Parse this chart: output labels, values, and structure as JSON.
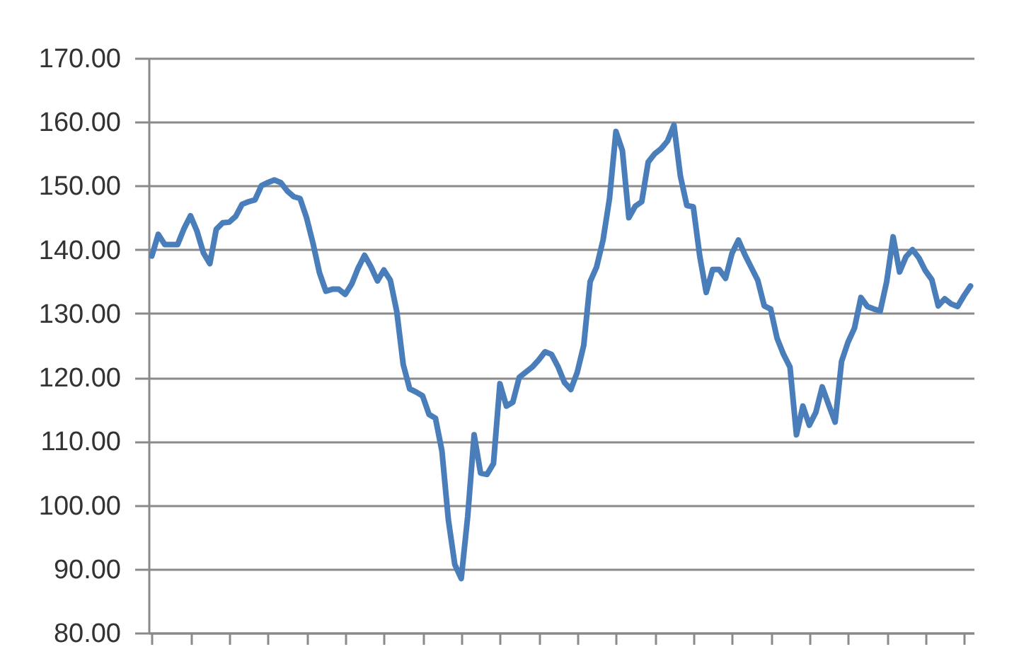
{
  "chart_data": {
    "type": "line",
    "categories": [
      null,
      null,
      null,
      null,
      null,
      null,
      null,
      null,
      null,
      null,
      null,
      null,
      null,
      null,
      null,
      null,
      null,
      null,
      null,
      null,
      null,
      null,
      null,
      null,
      null,
      null,
      null,
      null,
      null,
      null,
      null,
      null,
      null,
      null,
      null,
      null,
      null,
      null,
      null,
      null,
      null,
      null,
      null,
      null,
      null,
      null,
      null,
      null,
      null,
      null,
      null,
      null,
      null,
      null,
      null,
      null,
      null,
      null,
      null,
      null,
      null,
      null,
      null,
      null,
      null,
      null,
      null,
      null,
      null,
      null,
      null,
      null,
      null,
      null,
      null,
      null,
      null,
      null,
      null,
      null,
      null,
      null,
      null,
      null,
      null,
      null,
      null,
      null,
      null,
      null,
      null,
      null,
      null,
      null,
      null,
      null,
      null,
      null,
      null,
      null,
      null,
      null,
      null,
      null,
      null,
      null,
      null,
      null,
      null,
      null,
      null,
      null,
      null,
      null,
      null,
      null,
      null,
      null,
      null,
      null,
      null,
      null,
      null,
      null,
      null,
      null,
      null,
      null
    ],
    "series": [
      {
        "color": "#4a7ebb",
        "values": [
          139.0,
          142.4,
          140.8,
          140.8,
          140.8,
          143.3,
          145.3,
          142.9,
          139.5,
          137.8,
          143.2,
          144.2,
          144.3,
          145.2,
          147.1,
          147.5,
          147.8,
          150.0,
          150.5,
          150.9,
          150.5,
          149.2,
          148.3,
          148.0,
          145.0,
          141.0,
          136.4,
          133.5,
          133.8,
          133.8,
          133.0,
          134.6,
          137.1,
          139.1,
          137.3,
          135.1,
          136.8,
          135.2,
          130.3,
          122.0,
          118.2,
          117.7,
          117.1,
          114.2,
          113.6,
          108.5,
          97.7,
          90.7,
          88.5,
          98.2,
          111.0,
          105.0,
          104.8,
          106.5,
          119.0,
          115.5,
          116.1,
          120.0,
          120.8,
          121.6,
          122.7,
          124.0,
          123.6,
          121.7,
          119.2,
          118.1,
          120.8,
          125.0,
          135.0,
          137.3,
          141.5,
          148.0,
          158.5,
          155.5,
          145.0,
          146.8,
          147.5,
          153.7,
          155.0,
          155.8,
          157.0,
          159.5,
          151.5,
          146.9,
          146.7,
          139.0,
          133.3,
          136.9,
          136.9,
          135.5,
          139.4,
          141.5,
          139.2,
          137.2,
          135.2,
          131.2,
          130.7,
          126.1,
          123.6,
          121.6,
          111.0,
          115.5,
          112.5,
          114.5,
          118.5,
          115.7,
          113.0,
          122.5,
          125.5,
          127.7,
          132.5,
          131.1,
          130.7,
          130.4,
          135.0,
          142.0,
          136.5,
          138.9,
          140.0,
          138.7,
          136.7,
          135.3,
          131.2,
          132.3,
          131.5,
          131.1,
          132.8,
          134.3
        ]
      }
    ],
    "ylim": [
      80,
      170
    ],
    "yticks": [
      {
        "value": 80,
        "label": "80.00"
      },
      {
        "value": 90,
        "label": "90.00"
      },
      {
        "value": 100,
        "label": "100.00"
      },
      {
        "value": 110,
        "label": "110.00"
      },
      {
        "value": 120,
        "label": "120.00"
      },
      {
        "value": 130,
        "label": "130.00"
      },
      {
        "value": 140,
        "label": "140.00"
      },
      {
        "value": 150,
        "label": "150.00"
      },
      {
        "value": 160,
        "label": "160.00"
      },
      {
        "value": 170,
        "label": "170.00"
      }
    ],
    "grid": "y",
    "tick_labels": "y"
  }
}
